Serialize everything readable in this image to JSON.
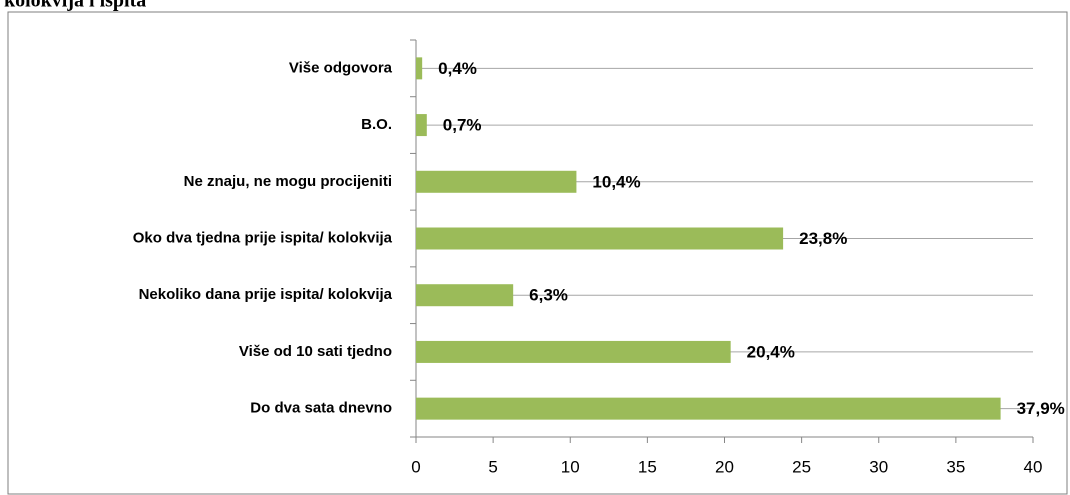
{
  "chart_data": {
    "type": "bar",
    "orientation": "horizontal",
    "title": "kolokvija i ispita",
    "categories": [
      "Više odgovora",
      "B.O.",
      "Ne znaju, ne mogu procijeniti",
      "Oko dva tjedna prije ispita/ kolokvija",
      "Nekoliko dana prije ispita/ kolokvija",
      "Više od 10 sati tjedno",
      "Do dva sata dnevno"
    ],
    "values": [
      0.4,
      0.7,
      10.4,
      23.8,
      6.3,
      20.4,
      37.9
    ],
    "value_labels": [
      "0,4%",
      "0,7%",
      "10,4%",
      "23,8%",
      "6,3%",
      "20,4%",
      "37,9%"
    ],
    "color": "#9bbb59",
    "xlim": [
      0,
      40
    ],
    "xticks": [
      0,
      5,
      10,
      15,
      20,
      25,
      30,
      35,
      40
    ],
    "grid": true
  }
}
